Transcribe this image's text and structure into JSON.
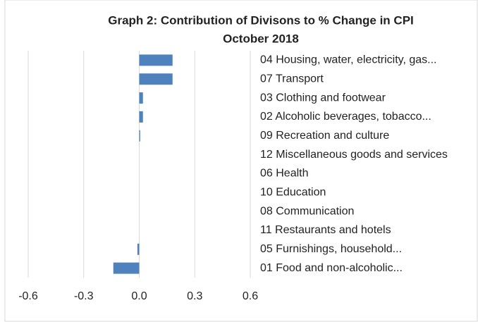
{
  "chart_data": {
    "type": "barh",
    "title": "Graph 2: Contribution of Divisons to % Change in CPI",
    "subtitle": "October 2018",
    "categories": [
      "04 Housing, water, electricity, gas...",
      "07 Transport",
      "03 Clothing and footwear",
      "02 Alcoholic beverages, tobacco...",
      "09 Recreation and culture",
      "12 Miscellaneous goods and services",
      "06 Health",
      "10 Education",
      "08 Communication",
      "11 Restaurants and hotels",
      "05 Furnishings, household...",
      "01 Food and non-alcoholic..."
    ],
    "values": [
      0.18,
      0.18,
      0.02,
      0.02,
      0.005,
      0,
      0,
      0,
      0,
      0,
      -0.01,
      -0.14
    ],
    "color": "#4f81bd",
    "xlim": [
      -0.6,
      0.6
    ],
    "xticks": [
      -0.6,
      -0.3,
      {
        "value": 0,
        "label": "0.0"
      },
      0.3,
      0.6
    ],
    "grid": true
  }
}
